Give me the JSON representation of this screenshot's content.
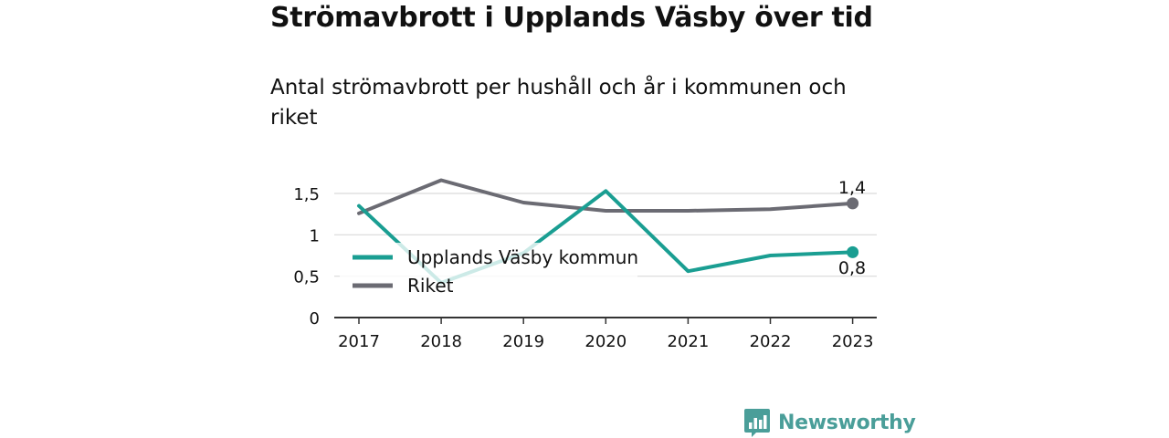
{
  "header": {
    "title": "Strömavbrott i Upplands Väsby över tid",
    "subtitle": "Antal strömavbrott per hushåll och år i kommunen och riket"
  },
  "brand": {
    "name": "Newsworthy"
  },
  "colors": {
    "kommun": "#1a9e92",
    "riket": "#6b6b73",
    "grid": "#d9d9d9",
    "axis": "#333333",
    "brand": "#4a9e99"
  },
  "chart_data": {
    "type": "line",
    "categories": [
      "2017",
      "2018",
      "2019",
      "2020",
      "2021",
      "2022",
      "2023"
    ],
    "series": [
      {
        "name": "Upplands Väsby kommun",
        "values": [
          1.35,
          0.42,
          0.78,
          1.53,
          0.56,
          0.75,
          0.79
        ]
      },
      {
        "name": "Riket",
        "values": [
          1.26,
          1.66,
          1.39,
          1.29,
          1.29,
          1.31,
          1.38
        ]
      }
    ],
    "yticks": [
      0,
      0.5,
      1,
      1.5
    ],
    "ytick_labels": [
      "0",
      "0,5",
      "1",
      "1,5"
    ],
    "ylim": [
      0,
      1.5
    ],
    "end_labels": {
      "kommun": "0,8",
      "riket": "1,4"
    },
    "grid": true,
    "legend_position": "inside-left"
  }
}
